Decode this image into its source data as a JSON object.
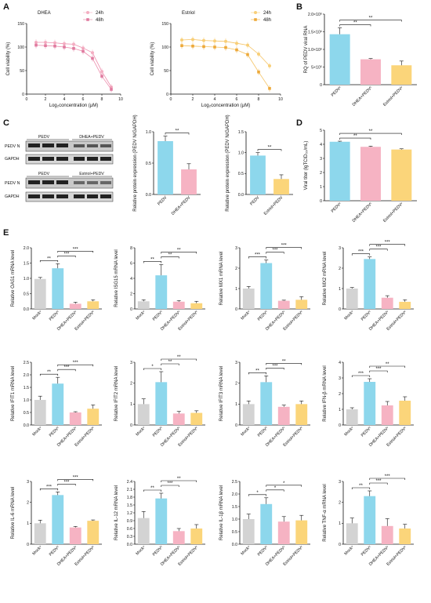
{
  "colors": {
    "mock": "#D3D3D3",
    "pedv": "#8DD7EC",
    "dhea": "#F6B3C3",
    "estriol": "#FBD57A",
    "dhea_curve": "#E8739A",
    "estriol_curve": "#F2B33A",
    "dhea_24": "#F4AEC2",
    "dhea_48": "#E07BA0",
    "est_24": "#F8CF78",
    "est_48": "#EDA93A"
  },
  "panels": {
    "A": "A",
    "B": "B",
    "C": "C",
    "D": "D",
    "E": "E"
  },
  "blots": {
    "band_pedv_n": "PEDV N",
    "band_gapdh": "GAPDH",
    "set1_headers": [
      "PEDV",
      "DHEA+PEDV"
    ],
    "set2_headers": [
      "PEDV",
      "Estriol+PEDV"
    ]
  },
  "chart_data": [
    {
      "id": "A1",
      "type": "scatter",
      "title": "DHEA",
      "xlabel": "Log₂concentration (μM)",
      "ylabel": "Cell viability (%)",
      "xlim": [
        0,
        10
      ],
      "ylim": [
        0,
        150
      ],
      "xticks": [
        0,
        2,
        4,
        6,
        8,
        10
      ],
      "yticks": [
        0,
        50,
        100,
        150
      ],
      "series": [
        {
          "name": "24h",
          "x": [
            1,
            2,
            3,
            4,
            5,
            6,
            7,
            8,
            9
          ],
          "values": [
            110,
            110,
            109,
            107,
            106,
            98,
            88,
            48,
            15
          ]
        },
        {
          "name": "48h",
          "x": [
            1,
            2,
            3,
            4,
            5,
            6,
            7,
            8,
            9
          ],
          "values": [
            104,
            103,
            102,
            100,
            97,
            91,
            76,
            38,
            10
          ]
        }
      ]
    },
    {
      "id": "A2",
      "type": "scatter",
      "title": "Estriol",
      "xlabel": "Log₂concentration (μM)",
      "ylabel": "Cell viability (%)",
      "xlim": [
        0,
        10
      ],
      "ylim": [
        0,
        150
      ],
      "xticks": [
        0,
        2,
        4,
        6,
        8,
        10
      ],
      "yticks": [
        0,
        50,
        100,
        150
      ],
      "series": [
        {
          "name": "24h",
          "x": [
            1,
            2,
            3,
            4,
            5,
            6,
            7,
            8,
            9
          ],
          "values": [
            115,
            116,
            114,
            113,
            112,
            108,
            104,
            85,
            60
          ]
        },
        {
          "name": "48h",
          "x": [
            1,
            2,
            3,
            4,
            5,
            6,
            7,
            8,
            9
          ],
          "values": [
            103,
            102,
            101,
            100,
            99,
            94,
            84,
            47,
            12
          ]
        }
      ]
    },
    {
      "id": "B",
      "type": "bar",
      "ylabel": "RQ of PEDV viral RNA",
      "categories": [
        "PEDVᵛ",
        "DHEA+PEDVᵛ",
        "Estriol+PEDVᵛ"
      ],
      "values": [
        1430000,
        720000,
        550000
      ],
      "errors": [
        180000,
        20000,
        120000
      ],
      "ylim": [
        0,
        2000000
      ],
      "yticks": [
        0,
        500000,
        1000000,
        1500000,
        2000000
      ],
      "ytick_labels": [
        "0",
        "5×10⁵",
        "1.0×10⁶",
        "1.5×10⁶",
        "2.0×10⁶"
      ],
      "colors": [
        "#8DD7EC",
        "#F6B3C3",
        "#FBD57A"
      ],
      "sig": [
        {
          "from": 0,
          "to": 1,
          "label": "**"
        },
        {
          "from": 0,
          "to": 2,
          "label": "**"
        }
      ]
    },
    {
      "id": "C1",
      "type": "bar",
      "ylabel": "Relative protein expression (PEDV N/GAPDH)",
      "categories": [
        "PEDV",
        "DHEA+PEDV"
      ],
      "values": [
        0.85,
        0.4
      ],
      "errors": [
        0.08,
        0.09
      ],
      "ylim": [
        0,
        1.0
      ],
      "yticks": [
        0,
        0.5,
        1.0
      ],
      "ytick_labels": [
        "0.0",
        "0.5",
        "1.0"
      ],
      "colors": [
        "#8DD7EC",
        "#F6B3C3"
      ],
      "sig": [
        {
          "from": 0,
          "to": 1,
          "label": "**"
        }
      ]
    },
    {
      "id": "C2",
      "type": "bar",
      "ylabel": "Relative protein expression (PEDV N/GAPDH)",
      "categories": [
        "PEDV",
        "Estriol+PEDV"
      ],
      "values": [
        0.93,
        0.37
      ],
      "errors": [
        0.07,
        0.1
      ],
      "ylim": [
        0,
        1.5
      ],
      "yticks": [
        0,
        0.5,
        1.0,
        1.5
      ],
      "ytick_labels": [
        "0.0",
        "0.5",
        "1.0",
        "1.5"
      ],
      "colors": [
        "#8DD7EC",
        "#FBD57A"
      ],
      "sig": [
        {
          "from": 0,
          "to": 1,
          "label": "**"
        }
      ]
    },
    {
      "id": "D",
      "type": "bar",
      "ylabel": "Viral titer (lgTCID₅₀/mL)",
      "categories": [
        "PEDVᵛ",
        "DHEA+PEDVᵛ",
        "Estriol+PEDVᵛ"
      ],
      "values": [
        4.18,
        3.82,
        3.63
      ],
      "errors": [
        0.04,
        0.05,
        0.05
      ],
      "ylim": [
        0,
        5
      ],
      "yticks": [
        0,
        1,
        2,
        3,
        4,
        5
      ],
      "ytick_labels": [
        "0",
        "1",
        "2",
        "3",
        "4",
        "5"
      ],
      "colors": [
        "#8DD7EC",
        "#F6B3C3",
        "#FBD57A"
      ],
      "sig": [
        {
          "from": 0,
          "to": 1,
          "label": "**"
        },
        {
          "from": 0,
          "to": 2,
          "label": "**"
        }
      ]
    },
    {
      "id": "E1",
      "type": "bar",
      "ylabel": "Relative OAS1 mRNA level",
      "categories": [
        "Mockᵛ",
        "PEDVᵛ",
        "DHEA+PEDVᵛ",
        "Estriol+PEDVᵛ"
      ],
      "values": [
        0.98,
        1.33,
        0.17,
        0.25
      ],
      "errors": [
        0.05,
        0.15,
        0.05,
        0.05
      ],
      "ylim": [
        0,
        2.0
      ],
      "yticks": [
        0,
        0.5,
        1.0,
        1.5,
        2.0
      ],
      "ytick_labels": [
        "0.0",
        "0.5",
        "1.0",
        "1.5",
        "2.0"
      ],
      "colors": [
        "#D3D3D3",
        "#8DD7EC",
        "#F6B3C3",
        "#FBD57A"
      ],
      "sig": [
        {
          "from": 0,
          "to": 1,
          "label": "**"
        },
        {
          "from": 1,
          "to": 2,
          "label": "***"
        },
        {
          "from": 1,
          "to": 3,
          "label": "***"
        }
      ]
    },
    {
      "id": "E2",
      "type": "bar",
      "ylabel": "Relative ISG15 mRNA level",
      "categories": [
        "Mockᵛ",
        "PEDVᵛ",
        "DHEA+PEDVᵛ",
        "Estriol+PEDVᵛ"
      ],
      "values": [
        1.0,
        4.4,
        0.95,
        0.75
      ],
      "errors": [
        0.2,
        1.4,
        0.15,
        0.25
      ],
      "ylim": [
        0,
        8
      ],
      "yticks": [
        0,
        2,
        4,
        6,
        8
      ],
      "ytick_labels": [
        "0",
        "2",
        "4",
        "6",
        "8"
      ],
      "colors": [
        "#D3D3D3",
        "#8DD7EC",
        "#F6B3C3",
        "#FBD57A"
      ],
      "sig": [
        {
          "from": 0,
          "to": 1,
          "label": "**"
        },
        {
          "from": 1,
          "to": 2,
          "label": "**"
        },
        {
          "from": 1,
          "to": 3,
          "label": "**"
        }
      ]
    },
    {
      "id": "E3",
      "type": "bar",
      "ylabel": "Relative MX1 mRNA level",
      "categories": [
        "Mockᵛ",
        "PEDVᵛ",
        "DHEA+PEDVᵛ",
        "Estriol+PEDVᵛ"
      ],
      "values": [
        1.0,
        2.25,
        0.4,
        0.45
      ],
      "errors": [
        0.1,
        0.15,
        0.03,
        0.15
      ],
      "ylim": [
        0,
        3
      ],
      "yticks": [
        0,
        1,
        2,
        3
      ],
      "ytick_labels": [
        "0",
        "1",
        "2",
        "3"
      ],
      "colors": [
        "#D3D3D3",
        "#8DD7EC",
        "#F6B3C3",
        "#FBD57A"
      ],
      "sig": [
        {
          "from": 0,
          "to": 1,
          "label": "***"
        },
        {
          "from": 1,
          "to": 2,
          "label": "***"
        },
        {
          "from": 1,
          "to": 3,
          "label": "***"
        }
      ]
    },
    {
      "id": "E4",
      "type": "bar",
      "ylabel": "Relative MX2 mRNA level",
      "categories": [
        "Mockᵛ",
        "PEDVᵛ",
        "DHEA+PEDVᵛ",
        "Estriol+PEDVᵛ"
      ],
      "values": [
        1.0,
        2.45,
        0.55,
        0.35
      ],
      "errors": [
        0.05,
        0.1,
        0.1,
        0.1
      ],
      "ylim": [
        0,
        3
      ],
      "yticks": [
        0,
        1,
        2,
        3
      ],
      "ytick_labels": [
        "0",
        "1",
        "2",
        "3"
      ],
      "colors": [
        "#D3D3D3",
        "#8DD7EC",
        "#F6B3C3",
        "#FBD57A"
      ],
      "sig": [
        {
          "from": 0,
          "to": 1,
          "label": "***"
        },
        {
          "from": 1,
          "to": 2,
          "label": "***"
        },
        {
          "from": 1,
          "to": 3,
          "label": "***"
        }
      ]
    },
    {
      "id": "E5",
      "type": "bar",
      "ylabel": "Relative IFIT1 mRNA level",
      "categories": [
        "Mockᵛ",
        "PEDVᵛ",
        "DHEA+PEDVᵛ",
        "Estriol+PEDVᵛ"
      ],
      "values": [
        1.0,
        1.65,
        0.5,
        0.65
      ],
      "errors": [
        0.15,
        0.25,
        0.03,
        0.15
      ],
      "ylim": [
        0,
        2.5
      ],
      "yticks": [
        0,
        0.5,
        1.0,
        1.5,
        2.0,
        2.5
      ],
      "ytick_labels": [
        "0.0",
        "0.5",
        "1.0",
        "1.5",
        "2.0",
        "2.5"
      ],
      "colors": [
        "#D3D3D3",
        "#8DD7EC",
        "#F6B3C3",
        "#FBD57A"
      ],
      "sig": [
        {
          "from": 0,
          "to": 1,
          "label": "**"
        },
        {
          "from": 1,
          "to": 2,
          "label": "***"
        },
        {
          "from": 1,
          "to": 3,
          "label": "***"
        }
      ]
    },
    {
      "id": "E6",
      "type": "bar",
      "ylabel": "Relative IFIT2 mRNA level",
      "categories": [
        "Mockᵛ",
        "PEDVᵛ",
        "DHEA+PEDVᵛ",
        "Estriol+PEDVᵛ"
      ],
      "values": [
        1.0,
        2.05,
        0.55,
        0.58
      ],
      "errors": [
        0.25,
        0.5,
        0.1,
        0.1
      ],
      "ylim": [
        0,
        3
      ],
      "yticks": [
        0,
        1,
        2,
        3
      ],
      "ytick_labels": [
        "0",
        "1",
        "2",
        "3"
      ],
      "colors": [
        "#D3D3D3",
        "#8DD7EC",
        "#F6B3C3",
        "#FBD57A"
      ],
      "sig": [
        {
          "from": 0,
          "to": 1,
          "label": "*"
        },
        {
          "from": 1,
          "to": 2,
          "label": "**"
        },
        {
          "from": 1,
          "to": 3,
          "label": "**"
        }
      ]
    },
    {
      "id": "E7",
      "type": "bar",
      "ylabel": "Relative IFIT3 mRNA level",
      "categories": [
        "Mockᵛ",
        "PEDVᵛ",
        "DHEA+PEDVᵛ",
        "Estriol+PEDVᵛ"
      ],
      "values": [
        1.0,
        2.05,
        0.87,
        1.0
      ],
      "errors": [
        0.15,
        0.3,
        0.08,
        0.15
      ],
      "ylim": [
        0,
        3
      ],
      "yticks": [
        0,
        1,
        2,
        3
      ],
      "ytick_labels": [
        "0",
        "1",
        "2",
        "3"
      ],
      "colors": [
        "#D3D3D3",
        "#8DD7EC",
        "#F6B3C3",
        "#FBD57A"
      ],
      "sig": [
        {
          "from": 0,
          "to": 1,
          "label": "**"
        },
        {
          "from": 1,
          "to": 2,
          "label": "***"
        },
        {
          "from": 1,
          "to": 3,
          "label": "**"
        }
      ]
    },
    {
      "id": "E8",
      "type": "bar",
      "ylabel": "Relative IFN-β mRNA level",
      "categories": [
        "Mockᵛ",
        "PEDVᵛ",
        "DHEA+PEDVᵛ",
        "Estriol+PEDVᵛ"
      ],
      "values": [
        1.0,
        2.75,
        1.25,
        1.55
      ],
      "errors": [
        0.1,
        0.2,
        0.25,
        0.25
      ],
      "ylim": [
        0,
        4
      ],
      "yticks": [
        0,
        1,
        2,
        3,
        4
      ],
      "ytick_labels": [
        "0",
        "1",
        "2",
        "3",
        "4"
      ],
      "colors": [
        "#D3D3D3",
        "#8DD7EC",
        "#F6B3C3",
        "#FBD57A"
      ],
      "sig": [
        {
          "from": 0,
          "to": 1,
          "label": "***"
        },
        {
          "from": 1,
          "to": 2,
          "label": "***"
        },
        {
          "from": 1,
          "to": 3,
          "label": "**"
        }
      ]
    },
    {
      "id": "E9",
      "type": "bar",
      "ylabel": "Relative IL-6 mRNA level",
      "categories": [
        "Mockᵛ",
        "PEDVᵛ",
        "DHEA+PEDVᵛ",
        "Estriol+PEDVᵛ"
      ],
      "values": [
        1.0,
        2.35,
        0.8,
        1.12
      ],
      "errors": [
        0.15,
        0.15,
        0.05,
        0.04
      ],
      "ylim": [
        0,
        3
      ],
      "yticks": [
        0,
        1,
        2,
        3
      ],
      "ytick_labels": [
        "0",
        "1",
        "2",
        "3"
      ],
      "colors": [
        "#D3D3D3",
        "#8DD7EC",
        "#F6B3C3",
        "#FBD57A"
      ],
      "sig": [
        {
          "from": 0,
          "to": 1,
          "label": "***"
        },
        {
          "from": 1,
          "to": 2,
          "label": "***"
        },
        {
          "from": 1,
          "to": 3,
          "label": "***"
        }
      ]
    },
    {
      "id": "E10",
      "type": "bar",
      "ylabel": "Relative IL-12 mRNA level",
      "categories": [
        "Mockᵛ",
        "PEDVᵛ",
        "DHEA+PEDVᵛ",
        "Estriol+PEDVᵛ"
      ],
      "values": [
        1.0,
        1.75,
        0.5,
        0.6
      ],
      "errors": [
        0.25,
        0.2,
        0.1,
        0.15
      ],
      "ylim": [
        0,
        2.4
      ],
      "yticks": [
        0,
        0.3,
        0.6,
        0.9,
        1.2,
        1.5,
        1.8,
        2.1,
        2.4
      ],
      "ytick_labels": [
        "0.0",
        "0.3",
        "0.6",
        "0.9",
        "1.2",
        "1.5",
        "1.8",
        "2.1",
        "2.4"
      ],
      "colors": [
        "#D3D3D3",
        "#8DD7EC",
        "#F6B3C3",
        "#FBD57A"
      ],
      "sig": [
        {
          "from": 0,
          "to": 1,
          "label": "**"
        },
        {
          "from": 1,
          "to": 2,
          "label": "***"
        },
        {
          "from": 1,
          "to": 3,
          "label": "**"
        }
      ]
    },
    {
      "id": "E11",
      "type": "bar",
      "ylabel": "Relative IL-1β mRNA level",
      "categories": [
        "Mockᵛ",
        "PEDVᵛ",
        "DHEA+PEDVᵛ",
        "Estriol+PEDVᵛ"
      ],
      "values": [
        1.0,
        1.6,
        0.9,
        0.95
      ],
      "errors": [
        0.2,
        0.25,
        0.2,
        0.2
      ],
      "ylim": [
        0,
        2.5
      ],
      "yticks": [
        0,
        0.5,
        1.0,
        1.5,
        2.0,
        2.5
      ],
      "ytick_labels": [
        "0.0",
        "0.5",
        "1.0",
        "1.5",
        "2.0",
        "2.5"
      ],
      "colors": [
        "#D3D3D3",
        "#8DD7EC",
        "#F6B3C3",
        "#FBD57A"
      ],
      "sig": [
        {
          "from": 0,
          "to": 1,
          "label": "*"
        },
        {
          "from": 1,
          "to": 2,
          "label": "*"
        },
        {
          "from": 1,
          "to": 3,
          "label": "*"
        }
      ]
    },
    {
      "id": "E12",
      "type": "bar",
      "ylabel": "Relative TNF-α mRNA level",
      "categories": [
        "Mockᵛ",
        "PEDVᵛ",
        "DHEA+PEDVᵛ",
        "Estriol+PEDVᵛ"
      ],
      "values": [
        1.0,
        2.3,
        0.87,
        0.75
      ],
      "errors": [
        0.25,
        0.25,
        0.35,
        0.2
      ],
      "ylim": [
        0,
        3
      ],
      "yticks": [
        0,
        1,
        2,
        3
      ],
      "ytick_labels": [
        "0",
        "1",
        "2",
        "3"
      ],
      "colors": [
        "#D3D3D3",
        "#8DD7EC",
        "#F6B3C3",
        "#FBD57A"
      ],
      "sig": [
        {
          "from": 0,
          "to": 1,
          "label": "**"
        },
        {
          "from": 1,
          "to": 2,
          "label": "***"
        },
        {
          "from": 1,
          "to": 3,
          "label": "***"
        }
      ]
    }
  ]
}
